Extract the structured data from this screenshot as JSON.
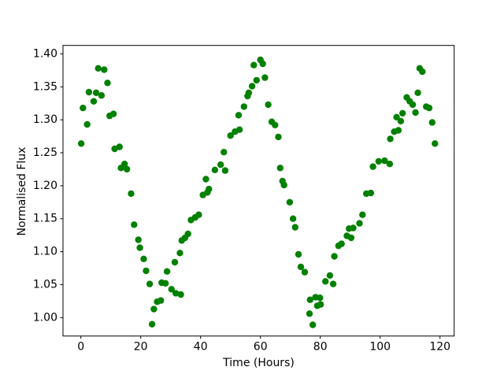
{
  "chart_data": {
    "type": "scatter",
    "title": "",
    "xlabel": "Time (Hours)",
    "ylabel": "Normalised Flux",
    "marker_color": "#008000",
    "axis_color": "#000000",
    "background_color": "#ffffff",
    "grid": "off",
    "legend": "none",
    "xlim": [
      -5.97,
      124.73
    ],
    "ylim": [
      0.9721,
      1.4128
    ],
    "x_ticks": [
      0,
      20,
      40,
      60,
      80,
      100,
      120
    ],
    "x_tick_labels": [
      "0",
      "20",
      "40",
      "60",
      "80",
      "100",
      "120"
    ],
    "y_ticks": [
      1.0,
      1.05,
      1.1,
      1.15,
      1.2,
      1.25,
      1.3,
      1.35,
      1.4
    ],
    "y_tick_labels": [
      "1.00",
      "1.05",
      "1.10",
      "1.15",
      "1.20",
      "1.25",
      "1.30",
      "1.35",
      "1.40"
    ],
    "points": [
      [
        0.1,
        1.264
      ],
      [
        0.7,
        1.318
      ],
      [
        2.1,
        1.293
      ],
      [
        2.7,
        1.342
      ],
      [
        4.3,
        1.328
      ],
      [
        5.1,
        1.341
      ],
      [
        5.8,
        1.378
      ],
      [
        6.9,
        1.337
      ],
      [
        7.8,
        1.376
      ],
      [
        8.9,
        1.356
      ],
      [
        9.6,
        1.306
      ],
      [
        10.9,
        1.309
      ],
      [
        11.3,
        1.256
      ],
      [
        12.9,
        1.259
      ],
      [
        13.4,
        1.227
      ],
      [
        14.6,
        1.233
      ],
      [
        15.4,
        1.225
      ],
      [
        16.8,
        1.188
      ],
      [
        17.8,
        1.141
      ],
      [
        19.2,
        1.118
      ],
      [
        19.7,
        1.106
      ],
      [
        21.0,
        1.089
      ],
      [
        21.8,
        1.071
      ],
      [
        23.0,
        1.051
      ],
      [
        23.8,
        0.99
      ],
      [
        24.4,
        1.013
      ],
      [
        25.5,
        1.024
      ],
      [
        26.7,
        1.026
      ],
      [
        27.0,
        1.053
      ],
      [
        28.3,
        1.052
      ],
      [
        28.8,
        1.07
      ],
      [
        30.3,
        1.043
      ],
      [
        31.4,
        1.084
      ],
      [
        31.7,
        1.037
      ],
      [
        33.1,
        1.098
      ],
      [
        33.4,
        1.035
      ],
      [
        33.7,
        1.117
      ],
      [
        34.8,
        1.121
      ],
      [
        35.8,
        1.127
      ],
      [
        36.8,
        1.148
      ],
      [
        38.2,
        1.152
      ],
      [
        39.4,
        1.156
      ],
      [
        40.8,
        1.186
      ],
      [
        41.8,
        1.21
      ],
      [
        42.3,
        1.19
      ],
      [
        42.8,
        1.195
      ],
      [
        44.8,
        1.224
      ],
      [
        46.7,
        1.232
      ],
      [
        47.8,
        1.251
      ],
      [
        48.2,
        1.223
      ],
      [
        50.0,
        1.276
      ],
      [
        51.5,
        1.282
      ],
      [
        52.7,
        1.307
      ],
      [
        53.0,
        1.285
      ],
      [
        54.5,
        1.32
      ],
      [
        55.7,
        1.336
      ],
      [
        56.1,
        1.341
      ],
      [
        57.2,
        1.351
      ],
      [
        57.8,
        1.383
      ],
      [
        58.7,
        1.36
      ],
      [
        60.0,
        1.391
      ],
      [
        60.8,
        1.385
      ],
      [
        61.5,
        1.364
      ],
      [
        62.6,
        1.323
      ],
      [
        63.8,
        1.297
      ],
      [
        64.9,
        1.292
      ],
      [
        66.0,
        1.274
      ],
      [
        66.6,
        1.227
      ],
      [
        67.4,
        1.207
      ],
      [
        67.9,
        1.201
      ],
      [
        69.8,
        1.175
      ],
      [
        70.9,
        1.15
      ],
      [
        71.6,
        1.137
      ],
      [
        72.7,
        1.096
      ],
      [
        73.5,
        1.077
      ],
      [
        74.8,
        1.069
      ],
      [
        76.4,
        1.006
      ],
      [
        76.6,
        1.027
      ],
      [
        77.5,
        0.989
      ],
      [
        78.4,
        1.031
      ],
      [
        79.0,
        1.018
      ],
      [
        79.9,
        1.03
      ],
      [
        80.1,
        1.02
      ],
      [
        81.7,
        1.055
      ],
      [
        83.2,
        1.064
      ],
      [
        84.3,
        1.051
      ],
      [
        84.7,
        1.093
      ],
      [
        86.1,
        1.109
      ],
      [
        87.1,
        1.112
      ],
      [
        88.9,
        1.124
      ],
      [
        89.6,
        1.135
      ],
      [
        90.3,
        1.121
      ],
      [
        91.0,
        1.136
      ],
      [
        93.1,
        1.143
      ],
      [
        94.1,
        1.156
      ],
      [
        95.4,
        1.188
      ],
      [
        96.9,
        1.189
      ],
      [
        97.6,
        1.229
      ],
      [
        99.5,
        1.237
      ],
      [
        101.5,
        1.238
      ],
      [
        103.2,
        1.233
      ],
      [
        103.4,
        1.271
      ],
      [
        104.7,
        1.282
      ],
      [
        105.5,
        1.304
      ],
      [
        106.1,
        1.284
      ],
      [
        106.9,
        1.298
      ],
      [
        107.5,
        1.31
      ],
      [
        108.9,
        1.334
      ],
      [
        109.9,
        1.328
      ],
      [
        110.9,
        1.323
      ],
      [
        111.8,
        1.311
      ],
      [
        112.6,
        1.341
      ],
      [
        113.2,
        1.378
      ],
      [
        114.1,
        1.373
      ],
      [
        115.4,
        1.32
      ],
      [
        116.4,
        1.318
      ],
      [
        117.4,
        1.296
      ],
      [
        118.3,
        1.264
      ]
    ]
  }
}
